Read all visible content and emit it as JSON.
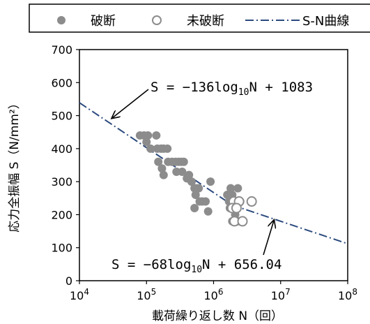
{
  "chart_data": {
    "type": "scatter",
    "xscale": "log",
    "xlim": [
      10000,
      100000000
    ],
    "ylim": [
      0,
      700
    ],
    "xticks": [
      {
        "value": 10000,
        "base": "10",
        "exp": "4"
      },
      {
        "value": 100000,
        "base": "10",
        "exp": "5"
      },
      {
        "value": 1000000,
        "base": "10",
        "exp": "6"
      },
      {
        "value": 10000000,
        "base": "10",
        "exp": "7"
      },
      {
        "value": 100000000,
        "base": "10",
        "exp": "8"
      }
    ],
    "yticks": [
      "0",
      "100",
      "200",
      "300",
      "400",
      "500",
      "600",
      "700"
    ],
    "xlabel": "載荷繰り返し数 N（回）",
    "ylabel": "応力全振幅 S（N/mm²）",
    "grid": false,
    "legend": {
      "position": "top",
      "entries": [
        {
          "label": "破断",
          "marker": "filled-circle",
          "color": "#8c8c8c"
        },
        {
          "label": "未破断",
          "marker": "open-circle",
          "color": "#8c8c8c"
        },
        {
          "label": "S-N曲線",
          "marker": "dashed-line",
          "color": "#2b4a7e"
        }
      ]
    },
    "series": [
      {
        "name": "破断",
        "points": [
          [
            80000,
            440
          ],
          [
            92000,
            440
          ],
          [
            105000,
            440
          ],
          [
            140000,
            440
          ],
          [
            100000,
            420
          ],
          [
            115000,
            400
          ],
          [
            145000,
            400
          ],
          [
            165000,
            400
          ],
          [
            180000,
            400
          ],
          [
            205000,
            400
          ],
          [
            150000,
            360
          ],
          [
            170000,
            340
          ],
          [
            180000,
            320
          ],
          [
            210000,
            360
          ],
          [
            240000,
            360
          ],
          [
            270000,
            360
          ],
          [
            300000,
            360
          ],
          [
            330000,
            360
          ],
          [
            360000,
            360
          ],
          [
            280000,
            330
          ],
          [
            340000,
            330
          ],
          [
            400000,
            310
          ],
          [
            470000,
            300
          ],
          [
            430000,
            320
          ],
          [
            520000,
            280
          ],
          [
            560000,
            280
          ],
          [
            600000,
            280
          ],
          [
            540000,
            260
          ],
          [
            620000,
            240
          ],
          [
            520000,
            220
          ],
          [
            680000,
            240
          ],
          [
            760000,
            240
          ],
          [
            900000,
            300
          ],
          [
            830000,
            210
          ],
          [
            1800000,
            280
          ],
          [
            2300000,
            280
          ],
          [
            1600000,
            260
          ],
          [
            1900000,
            260
          ],
          [
            1700000,
            240
          ],
          [
            2200000,
            240
          ],
          [
            2500000,
            240
          ],
          [
            1750000,
            220
          ],
          [
            2100000,
            200
          ],
          [
            1900000,
            180
          ],
          [
            2300000,
            180
          ]
        ],
        "color": "#8c8c8c"
      },
      {
        "name": "未破断",
        "points": [
          [
            2000000,
            240
          ],
          [
            2400000,
            240
          ],
          [
            3700000,
            240
          ],
          [
            1900000,
            220
          ],
          [
            2200000,
            220
          ],
          [
            2050000,
            180
          ],
          [
            2700000,
            180
          ]
        ],
        "color": "#8c8c8c"
      },
      {
        "name": "S-N曲線",
        "segments": [
          {
            "x_from": 10000,
            "x_to": 2000000,
            "slope": -136,
            "intercept": 1083
          },
          {
            "x_from": 2000000,
            "x_to": 100000000,
            "slope": -68,
            "intercept": 656.04
          }
        ],
        "color": "#2b4a7e"
      }
    ],
    "annotations": [
      {
        "prefix": "S = −136log",
        "sub": "10",
        "suffix": "N + 1083",
        "arrow_to": [
          30000,
          491
        ]
      },
      {
        "prefix": "S = −68log",
        "sub": "10",
        "suffix": "N + 656.04",
        "arrow_to": [
          8000000,
          185
        ]
      }
    ]
  }
}
